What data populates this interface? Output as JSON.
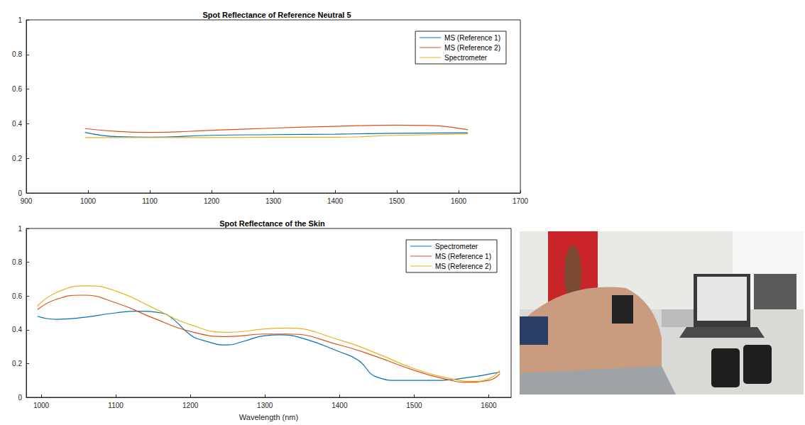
{
  "chart_data": [
    {
      "type": "line",
      "title": "Spot Reflectance of Reference Neutral 5",
      "xlim": [
        900,
        1700
      ],
      "xticks": [
        900,
        1000,
        1100,
        1200,
        1300,
        1400,
        1500,
        1600,
        1700
      ],
      "ylim": [
        0,
        1
      ],
      "yticks": [
        0,
        0.2,
        0.4,
        0.6,
        0.8,
        1
      ],
      "grid": false,
      "legend": "upper right",
      "series": [
        {
          "name": "MS (Reference 1)",
          "color": "#0072bd",
          "x": [
            995,
            1050,
            1100,
            1200,
            1300,
            1400,
            1500,
            1615
          ],
          "values": [
            0.35,
            0.325,
            0.322,
            0.333,
            0.337,
            0.34,
            0.345,
            0.348
          ]
        },
        {
          "name": "MS (Reference 2)",
          "color": "#d95319",
          "x": [
            995,
            1050,
            1100,
            1200,
            1300,
            1400,
            1500,
            1550,
            1615
          ],
          "values": [
            0.372,
            0.355,
            0.35,
            0.362,
            0.375,
            0.385,
            0.392,
            0.39,
            0.365
          ]
        },
        {
          "name": "Spectrometer",
          "color": "#edb120",
          "x": [
            995,
            1100,
            1200,
            1300,
            1400,
            1500,
            1615
          ],
          "values": [
            0.32,
            0.32,
            0.32,
            0.322,
            0.322,
            0.333,
            0.342
          ]
        }
      ]
    },
    {
      "type": "line",
      "title": "Spot Reflectance of the Skin",
      "xlabel": "Wavelength (nm)",
      "xlim": [
        980,
        1630
      ],
      "xticks": [
        1000,
        1100,
        1200,
        1300,
        1400,
        1500,
        1600
      ],
      "ylim": [
        0,
        1
      ],
      "yticks": [
        0,
        0.2,
        0.4,
        0.6,
        0.8,
        1
      ],
      "grid": false,
      "legend": "upper right",
      "series": [
        {
          "name": "Spectrometer",
          "color": "#0072bd",
          "x": [
            995,
            1020,
            1050,
            1100,
            1130,
            1160,
            1175,
            1200,
            1215,
            1250,
            1270,
            1300,
            1320,
            1350,
            1400,
            1425,
            1450,
            1480,
            1520,
            1560,
            1615
          ],
          "values": [
            0.48,
            0.462,
            0.47,
            0.5,
            0.51,
            0.5,
            0.47,
            0.37,
            0.34,
            0.31,
            0.33,
            0.365,
            0.37,
            0.35,
            0.27,
            0.22,
            0.12,
            0.1,
            0.1,
            0.11,
            0.15
          ]
        },
        {
          "name": "MS (Reference 1)",
          "color": "#d95319",
          "x": [
            995,
            1020,
            1055,
            1100,
            1150,
            1200,
            1250,
            1300,
            1330,
            1400,
            1450,
            1500,
            1550,
            1570,
            1600,
            1615
          ],
          "values": [
            0.52,
            0.58,
            0.605,
            0.56,
            0.47,
            0.39,
            0.36,
            0.375,
            0.375,
            0.31,
            0.24,
            0.16,
            0.1,
            0.09,
            0.1,
            0.14
          ]
        },
        {
          "name": "MS (Reference 2)",
          "color": "#edb120",
          "x": [
            995,
            1020,
            1060,
            1100,
            1150,
            1200,
            1250,
            1300,
            1330,
            1400,
            1450,
            1500,
            1550,
            1580,
            1600,
            1615
          ],
          "values": [
            0.54,
            0.62,
            0.66,
            0.63,
            0.53,
            0.43,
            0.385,
            0.405,
            0.41,
            0.34,
            0.26,
            0.17,
            0.11,
            0.095,
            0.11,
            0.16
          ]
        }
      ]
    }
  ]
}
